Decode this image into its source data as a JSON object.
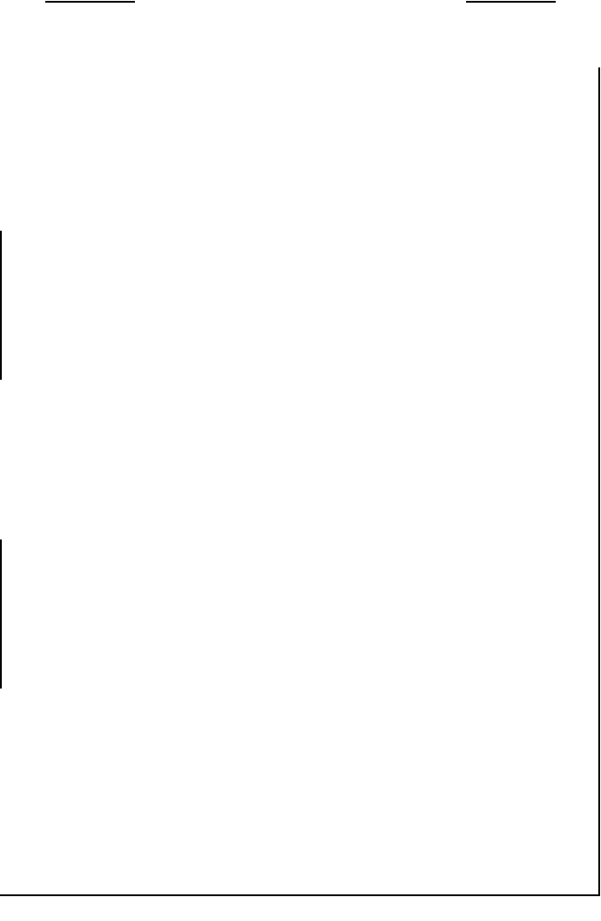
{
  "page": {
    "background_color": "#ffffff",
    "line_color": "#000000"
  }
}
